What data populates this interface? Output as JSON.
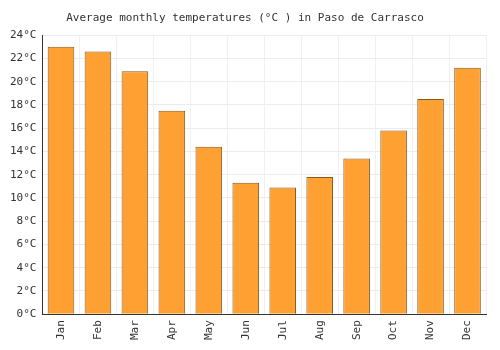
{
  "chart_data": {
    "type": "bar",
    "title": "Average monthly temperatures (°C ) in Paso de Carrasco",
    "categories": [
      "Jan",
      "Feb",
      "Mar",
      "Apr",
      "May",
      "Jun",
      "Jul",
      "Aug",
      "Sep",
      "Oct",
      "Nov",
      "Dec"
    ],
    "values": [
      23.0,
      22.6,
      20.9,
      17.5,
      14.4,
      11.3,
      10.9,
      11.8,
      13.4,
      15.8,
      18.5,
      21.2
    ],
    "color": "#ffa033",
    "ylim": [
      0,
      24
    ],
    "yticks": [
      {
        "value": 0,
        "label": "0°C"
      },
      {
        "value": 2,
        "label": "2°C"
      },
      {
        "value": 4,
        "label": "4°C"
      },
      {
        "value": 6,
        "label": "6°C"
      },
      {
        "value": 8,
        "label": "8°C"
      },
      {
        "value": 10,
        "label": "10°C"
      },
      {
        "value": 12,
        "label": "12°C"
      },
      {
        "value": 14,
        "label": "14°C"
      },
      {
        "value": 16,
        "label": "16°C"
      },
      {
        "value": 18,
        "label": "18°C"
      },
      {
        "value": 20,
        "label": "20°C"
      },
      {
        "value": 22,
        "label": "22°C"
      },
      {
        "value": 24,
        "label": "24°C"
      }
    ],
    "grid": true
  }
}
